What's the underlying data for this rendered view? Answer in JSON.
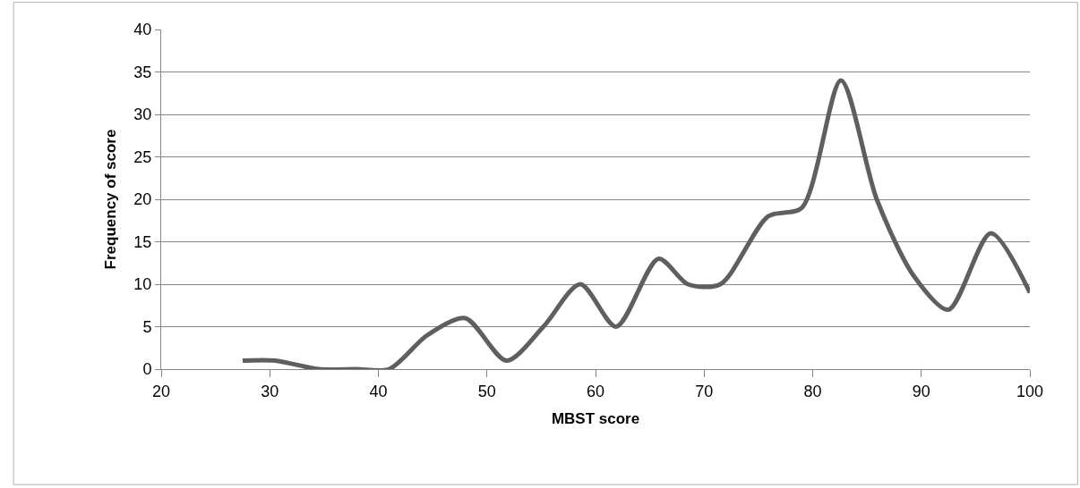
{
  "chart_data": {
    "type": "line",
    "xlabel": "MBST score",
    "ylabel": "Frequency of score",
    "x": [
      27.5,
      30.5,
      34.5,
      38,
      41,
      44.5,
      48,
      51.8,
      55.2,
      58.6,
      61.9,
      65.8,
      68.5,
      71.5,
      75.9,
      79,
      82.6,
      85.9,
      89.3,
      92.5,
      96.4,
      100
    ],
    "series": [
      {
        "color": "#5f5f5f",
        "values": [
          1,
          1,
          0,
          0,
          0,
          4,
          6,
          1,
          5,
          10,
          5,
          13,
          10,
          10,
          18,
          19,
          34,
          20,
          11,
          7,
          16,
          9
        ]
      }
    ],
    "xlim": [
      20,
      100
    ],
    "xticks": [
      20,
      30,
      40,
      50,
      60,
      70,
      80,
      90,
      100
    ],
    "ylim": [
      0,
      40
    ],
    "yticks": [
      0,
      5,
      10,
      15,
      20,
      25,
      30,
      35,
      40
    ],
    "grid": "y",
    "marker": "none",
    "line_style": "solid"
  }
}
